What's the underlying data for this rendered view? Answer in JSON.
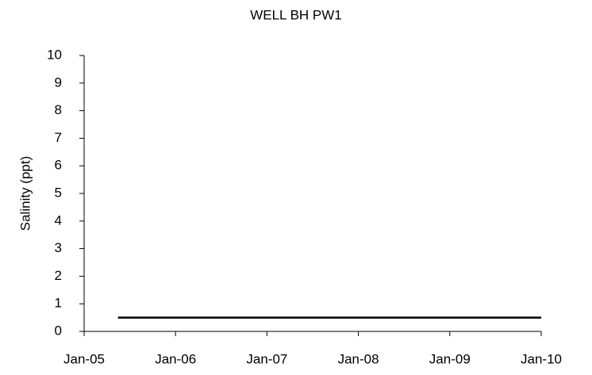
{
  "chart_data": {
    "type": "line",
    "title": "WELL BH PW1",
    "y_label": "Salinity (ppt)",
    "x": [
      2005.37,
      2010.0
    ],
    "series": [
      {
        "name": "Salinity",
        "color": "#000000",
        "values": [
          0.5,
          0.5
        ]
      }
    ],
    "xlim": [
      2005,
      2010
    ],
    "xticks": [
      {
        "value": 2005,
        "label": "Jan-05"
      },
      {
        "value": 2006,
        "label": "Jan-06"
      },
      {
        "value": 2007,
        "label": "Jan-07"
      },
      {
        "value": 2008,
        "label": "Jan-08"
      },
      {
        "value": 2009,
        "label": "Jan-09"
      },
      {
        "value": 2010,
        "label": "Jan-10"
      }
    ],
    "ylim": [
      0,
      10
    ],
    "yticks": [
      0,
      1,
      2,
      3,
      4,
      5,
      6,
      7,
      8,
      9,
      10
    ],
    "grid": false
  }
}
